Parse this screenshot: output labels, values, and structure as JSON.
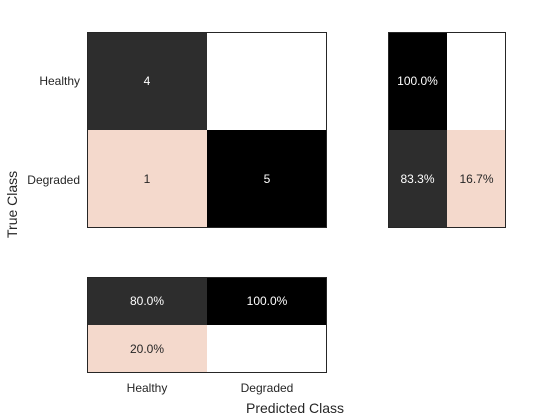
{
  "chart_data": {
    "type": "heatmap",
    "title": "",
    "xlabel": "Predicted Class",
    "ylabel": "True Class",
    "classes": [
      "Healthy",
      "Degraded"
    ],
    "confusion_matrix": [
      [
        4,
        null
      ],
      [
        1,
        5
      ]
    ],
    "confusion_matrix_text": [
      [
        "4",
        ""
      ],
      [
        "1",
        "5"
      ]
    ],
    "row_summary": [
      [
        "100.0%",
        ""
      ],
      [
        "83.3%",
        "16.7%"
      ]
    ],
    "column_summary": [
      [
        "80.0%",
        "100.0%"
      ],
      [
        "20.0%",
        ""
      ]
    ],
    "colors": {
      "dark": "#2d2d2d",
      "black": "#000000",
      "light": "#f4d9cc",
      "white": "#ffffff",
      "text_light": "#ffffff",
      "text_dark": "#262626"
    }
  }
}
